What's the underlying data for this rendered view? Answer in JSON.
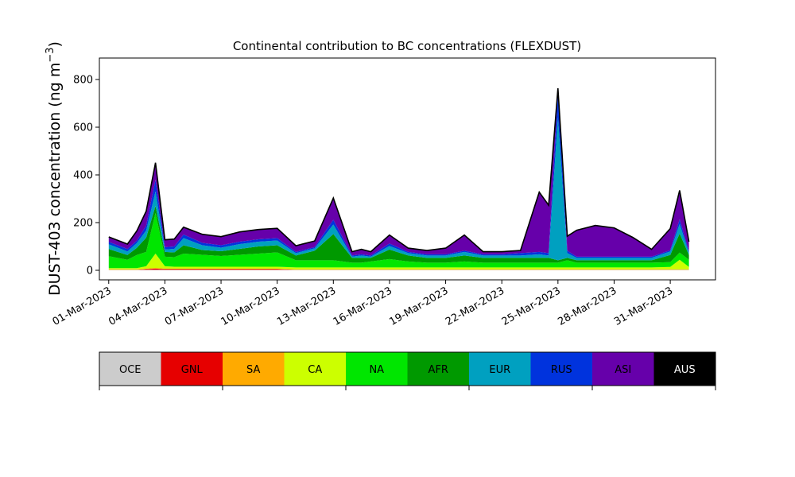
{
  "chart_data": {
    "type": "area",
    "title": "Continental contribution to BC concentrations (FLEXDUST)",
    "ylabel_main": "DUST-403 concentration (ng m",
    "ylabel_unit_power": "−3",
    "ylabel_close": ")",
    "xlabel": "",
    "stacked": true,
    "x_range": [
      "2023-02-28T12:00",
      "2023-04-02T10:00"
    ],
    "ylim": [
      -40,
      890
    ],
    "yticks": [
      0,
      200,
      400,
      600,
      800
    ],
    "xticks": [
      "01-Mar-2023",
      "04-Mar-2023",
      "07-Mar-2023",
      "10-Mar-2023",
      "13-Mar-2023",
      "16-Mar-2023",
      "19-Mar-2023",
      "22-Mar-2023",
      "25-Mar-2023",
      "28-Mar-2023",
      "31-Mar-2023"
    ],
    "xtick_dates": [
      "2023-03-01",
      "2023-03-04",
      "2023-03-07",
      "2023-03-10",
      "2023-03-13",
      "2023-03-16",
      "2023-03-19",
      "2023-03-22",
      "2023-03-25",
      "2023-03-28",
      "2023-03-31"
    ],
    "grid": false,
    "total_line_color": "#000000",
    "dates": [
      "2023-03-01",
      "2023-03-02",
      "2023-03-02T12:00",
      "2023-03-03",
      "2023-03-03T12:00",
      "2023-03-04",
      "2023-03-04T12:00",
      "2023-03-05",
      "2023-03-06",
      "2023-03-07",
      "2023-03-08",
      "2023-03-09",
      "2023-03-10",
      "2023-03-11",
      "2023-03-12",
      "2023-03-13",
      "2023-03-14",
      "2023-03-14T12:00",
      "2023-03-15",
      "2023-03-16",
      "2023-03-17",
      "2023-03-18",
      "2023-03-19",
      "2023-03-20",
      "2023-03-21",
      "2023-03-22",
      "2023-03-23",
      "2023-03-24",
      "2023-03-24T12:00",
      "2023-03-25",
      "2023-03-25T12:00",
      "2023-03-26",
      "2023-03-27",
      "2023-03-28",
      "2023-03-29",
      "2023-03-30",
      "2023-03-31",
      "2023-03-31T12:00",
      "2023-04-01"
    ],
    "series": [
      {
        "name": "OCE",
        "color": "#cccccc",
        "values": [
          2,
          2,
          2,
          2,
          2,
          2,
          2,
          2,
          2,
          2,
          2,
          2,
          2,
          2,
          2,
          2,
          2,
          2,
          2,
          2,
          2,
          2,
          2,
          2,
          2,
          2,
          2,
          2,
          2,
          2,
          2,
          2,
          2,
          2,
          2,
          2,
          2,
          2,
          2
        ]
      },
      {
        "name": "GNL",
        "color": "#e60000",
        "values": [
          0,
          0,
          0,
          3,
          5,
          3,
          3,
          3,
          3,
          3,
          3,
          3,
          3,
          0,
          0,
          0,
          0,
          0,
          0,
          0,
          0,
          0,
          0,
          0,
          0,
          0,
          0,
          0,
          0,
          0,
          0,
          0,
          0,
          0,
          0,
          0,
          0,
          0,
          0
        ]
      },
      {
        "name": "SA",
        "color": "#ffaa00",
        "values": [
          2,
          2,
          2,
          2,
          3,
          2,
          2,
          2,
          2,
          2,
          2,
          2,
          2,
          2,
          2,
          2,
          2,
          2,
          2,
          2,
          2,
          2,
          2,
          2,
          2,
          2,
          2,
          2,
          2,
          2,
          2,
          2,
          2,
          2,
          2,
          2,
          2,
          2,
          2
        ]
      },
      {
        "name": "CA",
        "color": "#ccff00",
        "values": [
          5,
          5,
          5,
          10,
          60,
          10,
          8,
          8,
          8,
          8,
          8,
          8,
          8,
          8,
          8,
          8,
          8,
          8,
          8,
          8,
          8,
          8,
          8,
          8,
          8,
          8,
          8,
          8,
          8,
          8,
          8,
          8,
          8,
          8,
          8,
          8,
          10,
          40,
          10
        ]
      },
      {
        "name": "NA",
        "color": "#00e600",
        "values": [
          50,
          35,
          55,
          60,
          170,
          40,
          40,
          55,
          50,
          45,
          50,
          55,
          60,
          30,
          30,
          30,
          20,
          20,
          25,
          35,
          25,
          20,
          20,
          25,
          20,
          20,
          20,
          20,
          20,
          20,
          30,
          20,
          20,
          20,
          20,
          20,
          20,
          30,
          30
        ]
      },
      {
        "name": "AFR",
        "color": "#009900",
        "values": [
          30,
          20,
          30,
          60,
          30,
          20,
          20,
          35,
          20,
          20,
          25,
          30,
          30,
          20,
          40,
          110,
          20,
          20,
          15,
          40,
          25,
          20,
          20,
          25,
          20,
          20,
          20,
          20,
          20,
          10,
          10,
          10,
          10,
          10,
          10,
          10,
          30,
          80,
          20
        ]
      },
      {
        "name": "EUR",
        "color": "#00a0c0",
        "values": [
          20,
          15,
          20,
          30,
          60,
          10,
          15,
          30,
          20,
          15,
          20,
          20,
          20,
          10,
          10,
          40,
          5,
          10,
          5,
          15,
          10,
          10,
          10,
          15,
          10,
          10,
          10,
          15,
          10,
          600,
          20,
          10,
          10,
          10,
          10,
          10,
          15,
          40,
          10
        ]
      },
      {
        "name": "RUS",
        "color": "#0033dd",
        "values": [
          10,
          10,
          10,
          20,
          50,
          10,
          10,
          15,
          10,
          10,
          10,
          10,
          10,
          5,
          5,
          20,
          5,
          5,
          5,
          10,
          5,
          5,
          5,
          5,
          5,
          5,
          10,
          10,
          10,
          100,
          10,
          5,
          5,
          5,
          5,
          5,
          5,
          20,
          5
        ]
      },
      {
        "name": "ASI",
        "color": "#6600aa",
        "values": [
          20,
          20,
          40,
          60,
          70,
          30,
          30,
          30,
          35,
          35,
          40,
          40,
          40,
          25,
          25,
          90,
          15,
          20,
          15,
          35,
          15,
          15,
          25,
          65,
          10,
          10,
          10,
          250,
          200,
          20,
          60,
          110,
          130,
          120,
          80,
          30,
          90,
          120,
          40
        ]
      },
      {
        "name": "AUS",
        "color": "#000000",
        "values": [
          1,
          1,
          1,
          1,
          1,
          1,
          1,
          1,
          1,
          1,
          1,
          1,
          1,
          1,
          1,
          1,
          1,
          1,
          1,
          1,
          1,
          1,
          1,
          1,
          1,
          1,
          1,
          1,
          1,
          1,
          1,
          1,
          1,
          1,
          1,
          1,
          1,
          1,
          1
        ]
      }
    ]
  },
  "legend": {
    "entries": [
      {
        "label": "OCE",
        "color": "#cccccc",
        "text_color": "#000000"
      },
      {
        "label": "GNL",
        "color": "#e60000",
        "text_color": "#000000"
      },
      {
        "label": "SA",
        "color": "#ffaa00",
        "text_color": "#000000"
      },
      {
        "label": "CA",
        "color": "#ccff00",
        "text_color": "#000000"
      },
      {
        "label": "NA",
        "color": "#00e600",
        "text_color": "#000000"
      },
      {
        "label": "AFR",
        "color": "#009900",
        "text_color": "#000000"
      },
      {
        "label": "EUR",
        "color": "#00a0c0",
        "text_color": "#000000"
      },
      {
        "label": "RUS",
        "color": "#0033dd",
        "text_color": "#000000"
      },
      {
        "label": "ASI",
        "color": "#6600aa",
        "text_color": "#000000"
      },
      {
        "label": "AUS",
        "color": "#000000",
        "text_color": "#ffffff"
      }
    ]
  }
}
